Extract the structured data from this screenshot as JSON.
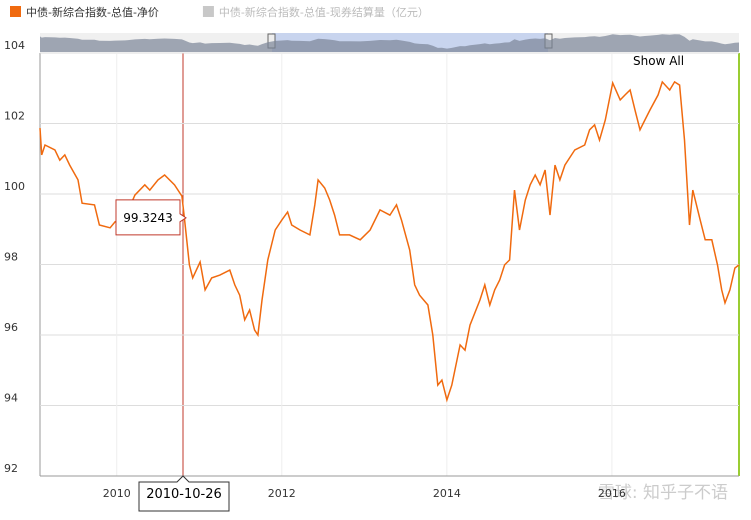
{
  "chart_data": {
    "type": "line",
    "series": [
      {
        "name": "中债-新综合指数-总值-净价",
        "color": "#f06a0f",
        "x": [
          2009.07,
          2009.09,
          2009.13,
          2009.25,
          2009.31,
          2009.37,
          2009.43,
          2009.53,
          2009.58,
          2009.73,
          2009.79,
          2009.92,
          2009.98,
          2010.1,
          2010.22,
          2010.34,
          2010.4,
          2010.5,
          2010.58,
          2010.7,
          2010.79,
          2010.82,
          2010.88,
          2010.92,
          2011.01,
          2011.07,
          2011.15,
          2011.25,
          2011.37,
          2011.43,
          2011.49,
          2011.55,
          2011.61,
          2011.67,
          2011.71,
          2011.76,
          2011.83,
          2011.92,
          2012.0,
          2012.07,
          2012.12,
          2012.22,
          2012.34,
          2012.4,
          2012.44,
          2012.52,
          2012.58,
          2012.64,
          2012.7,
          2012.82,
          2012.95,
          2013.07,
          2013.19,
          2013.31,
          2013.39,
          2013.45,
          2013.55,
          2013.61,
          2013.67,
          2013.77,
          2013.83,
          2013.89,
          2013.94,
          2014.0,
          2014.06,
          2014.16,
          2014.22,
          2014.28,
          2014.4,
          2014.46,
          2014.52,
          2014.58,
          2014.64,
          2014.7,
          2014.76,
          2014.82,
          2014.88,
          2014.95,
          2015.01,
          2015.07,
          2015.13,
          2015.19,
          2015.25,
          2015.31,
          2015.37,
          2015.43,
          2015.55,
          2015.67,
          2015.73,
          2015.79,
          2015.85,
          2015.92,
          2015.98,
          2016.01,
          2016.1,
          2016.16,
          2016.22,
          2016.28,
          2016.34,
          2016.4,
          2016.46,
          2016.56,
          2016.61,
          2016.7,
          2016.76,
          2016.82,
          2016.88,
          2016.94,
          2016.98,
          2017.07,
          2017.13,
          2017.21,
          2017.28,
          2017.33,
          2017.37,
          2017.43,
          2017.49,
          2017.54
        ],
        "values": [
          101.87,
          101.11,
          101.39,
          101.25,
          100.96,
          101.11,
          100.82,
          100.4,
          99.74,
          99.69,
          99.12,
          99.04,
          99.21,
          99.32,
          99.97,
          100.26,
          100.11,
          100.4,
          100.54,
          100.26,
          99.94,
          99.32,
          97.99,
          97.62,
          98.07,
          97.28,
          97.62,
          97.7,
          97.84,
          97.42,
          97.13,
          96.43,
          96.71,
          96.14,
          96.0,
          96.99,
          98.13,
          98.98,
          99.26,
          99.49,
          99.12,
          98.98,
          98.84,
          99.69,
          100.4,
          100.17,
          99.83,
          99.4,
          98.84,
          98.84,
          98.7,
          98.98,
          99.55,
          99.4,
          99.69,
          99.26,
          98.41,
          97.42,
          97.13,
          96.85,
          96.0,
          94.58,
          94.72,
          94.16,
          94.58,
          95.72,
          95.57,
          96.28,
          96.99,
          97.42,
          96.85,
          97.28,
          97.56,
          97.99,
          98.13,
          100.11,
          98.98,
          99.83,
          100.26,
          100.54,
          100.26,
          100.68,
          99.4,
          100.82,
          100.4,
          100.82,
          101.25,
          101.39,
          101.82,
          101.96,
          101.53,
          102.1,
          102.81,
          103.15,
          102.67,
          102.81,
          102.95,
          102.38,
          101.82,
          102.1,
          102.38,
          102.81,
          103.18,
          102.95,
          103.18,
          103.09,
          101.53,
          99.12,
          100.11,
          99.26,
          98.7,
          98.7,
          97.99,
          97.28,
          96.91,
          97.28,
          97.9,
          97.99
        ]
      },
      {
        "name": "中债-新综合指数-总值-现券结算量（亿元）",
        "color": "#c8c8c8",
        "visible": false
      }
    ],
    "xlim": [
      2009.07,
      2017.54
    ],
    "xticks": [
      2010,
      2012,
      2014,
      2016
    ],
    "ylim": [
      92,
      104
    ],
    "yticks": [
      92,
      94,
      96,
      98,
      100,
      102,
      104
    ],
    "grid": true,
    "tooltip": {
      "x": "2010-10-26",
      "value": 99.3243
    },
    "reset_button": "Show All",
    "watermark": "雪球: 知乎子不语"
  }
}
